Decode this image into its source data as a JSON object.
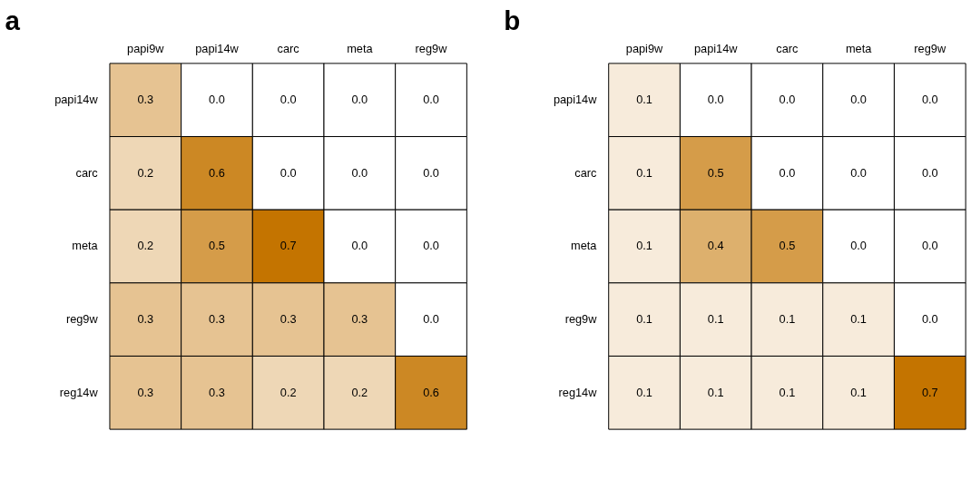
{
  "chart_data": [
    {
      "type": "heatmap",
      "title": "a",
      "categories": [
        "papi9w",
        "papi14w",
        "carc",
        "meta",
        "reg9w"
      ],
      "y_categories": [
        "papi14w",
        "carc",
        "meta",
        "reg9w",
        "reg14w"
      ],
      "cells": [
        [
          0.3,
          0.0,
          0.0,
          0.0,
          0.0
        ],
        [
          0.2,
          0.6,
          0.0,
          0.0,
          0.0
        ],
        [
          0.2,
          0.5,
          0.7,
          0.0,
          0.0
        ],
        [
          0.3,
          0.3,
          0.3,
          0.3,
          0.0
        ],
        [
          0.3,
          0.3,
          0.2,
          0.2,
          0.6
        ]
      ],
      "cell_labels": [
        [
          "0.3",
          "0.0",
          "0.0",
          "0.0",
          "0.0"
        ],
        [
          "0.2",
          "0.6",
          "0.0",
          "0.0",
          "0.0"
        ],
        [
          "0.2",
          "0.5",
          "0.7",
          "0.0",
          "0.0"
        ],
        [
          "0.3",
          "0.3",
          "0.3",
          "0.3",
          "0.0"
        ],
        [
          "0.3",
          "0.3",
          "0.2",
          "0.2",
          "0.6"
        ]
      ],
      "colors": [
        "#ffffff",
        "#c47400"
      ],
      "data_labels": true
    },
    {
      "type": "heatmap",
      "title": "b",
      "categories": [
        "papi9w",
        "papi14w",
        "carc",
        "meta",
        "reg9w"
      ],
      "y_categories": [
        "papi14w",
        "carc",
        "meta",
        "reg9w",
        "reg14w"
      ],
      "cells": [
        [
          0.1,
          0.0,
          0.0,
          0.0,
          0.0
        ],
        [
          0.1,
          0.5,
          0.0,
          0.0,
          0.0
        ],
        [
          0.1,
          0.4,
          0.5,
          0.0,
          0.0
        ],
        [
          0.1,
          0.1,
          0.1,
          0.1,
          0.0
        ],
        [
          0.1,
          0.1,
          0.1,
          0.1,
          0.7
        ]
      ],
      "cell_labels": [
        [
          "0.1",
          "0.0",
          "0.0",
          "0.0",
          "0.0"
        ],
        [
          "0.1",
          "0.5",
          "0.0",
          "0.0",
          "0.0"
        ],
        [
          "0.1",
          "0.4",
          "0.5",
          "0.0",
          "0.0"
        ],
        [
          "0.1",
          "0.1",
          "0.1",
          "0.1",
          "0.0"
        ],
        [
          "0.1",
          "0.1",
          "0.1",
          "0.1",
          "0.7"
        ]
      ],
      "colors": [
        "#ffffff",
        "#c47400"
      ],
      "data_labels": true
    }
  ]
}
